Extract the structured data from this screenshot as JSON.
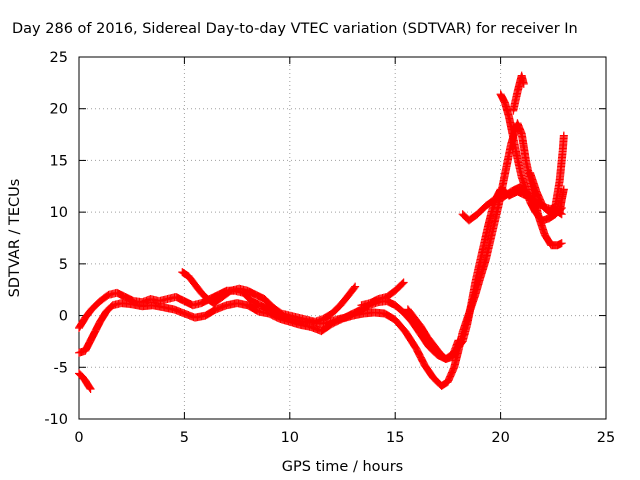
{
  "chart_data": {
    "type": "scatter",
    "title": "Day 286 of 2016, Sidereal Day-to-day VTEC variation (SDTVAR) for receiver In",
    "xlabel": "GPS time / hours",
    "ylabel": "SDTVAR / TECUs",
    "xlim": [
      0,
      25
    ],
    "ylim": [
      -10,
      25
    ],
    "xticks": [
      0,
      5,
      10,
      15,
      20,
      25
    ],
    "yticks": [
      -10,
      -5,
      0,
      5,
      10,
      15,
      20,
      25
    ],
    "grid": true,
    "marker": "plus",
    "color": "#ff0000",
    "series": [
      {
        "points": [
          [
            0.0,
            -1.2
          ],
          [
            0.3,
            -0.2
          ],
          [
            0.6,
            0.6
          ],
          [
            1.0,
            1.4
          ],
          [
            1.4,
            2.0
          ],
          [
            1.8,
            2.2
          ],
          [
            2.2,
            1.8
          ],
          [
            2.6,
            1.4
          ],
          [
            3.0,
            1.3
          ],
          [
            3.4,
            1.6
          ],
          [
            3.8,
            1.4
          ],
          [
            4.2,
            1.6
          ],
          [
            4.6,
            1.8
          ],
          [
            5.0,
            1.4
          ],
          [
            5.4,
            1.0
          ],
          [
            5.8,
            1.2
          ],
          [
            6.2,
            1.6
          ],
          [
            6.6,
            2.0
          ],
          [
            7.0,
            2.4
          ],
          [
            7.4,
            2.4
          ],
          [
            7.8,
            2.2
          ],
          [
            8.2,
            1.4
          ],
          [
            8.6,
            1.0
          ],
          [
            9.0,
            0.6
          ],
          [
            9.4,
            0.2
          ],
          [
            9.8,
            -0.2
          ],
          [
            10.2,
            -0.4
          ],
          [
            10.6,
            -0.6
          ],
          [
            11.0,
            -0.6
          ],
          [
            11.4,
            -0.8
          ],
          [
            11.8,
            -0.7
          ],
          [
            12.2,
            -0.4
          ],
          [
            12.6,
            -0.2
          ],
          [
            13.0,
            0.2
          ],
          [
            13.4,
            0.6
          ],
          [
            13.8,
            1.0
          ],
          [
            14.2,
            1.3
          ],
          [
            14.6,
            1.4
          ],
          [
            15.0,
            1.0
          ],
          [
            15.4,
            0.3
          ],
          [
            15.8,
            -0.6
          ],
          [
            16.2,
            -1.8
          ],
          [
            16.6,
            -3.0
          ],
          [
            17.0,
            -3.8
          ],
          [
            17.4,
            -4.2
          ],
          [
            17.8,
            -3.6
          ],
          [
            18.0,
            -3.0
          ],
          [
            18.2,
            -2.5
          ],
          [
            18.4,
            -1.0
          ],
          [
            18.6,
            1.0
          ],
          [
            18.8,
            3.2
          ],
          [
            19.0,
            5.0
          ],
          [
            19.2,
            6.8
          ],
          [
            19.4,
            8.6
          ],
          [
            19.6,
            10.2
          ],
          [
            19.8,
            11.4
          ],
          [
            20.0,
            12.2
          ],
          [
            20.2,
            12.0
          ],
          [
            20.4,
            11.6
          ],
          [
            20.6,
            11.8
          ],
          [
            20.8,
            12.0
          ],
          [
            21.0,
            11.8
          ],
          [
            21.4,
            11.4
          ],
          [
            21.8,
            10.8
          ],
          [
            22.2,
            10.4
          ],
          [
            22.6,
            10.2
          ],
          [
            22.9,
            9.8
          ]
        ]
      },
      {
        "points": [
          [
            0.0,
            -3.6
          ],
          [
            0.3,
            -3.4
          ],
          [
            0.5,
            -2.6
          ],
          [
            0.8,
            -1.4
          ],
          [
            1.0,
            -0.6
          ],
          [
            1.3,
            0.4
          ],
          [
            1.6,
            1.0
          ],
          [
            2.0,
            1.2
          ],
          [
            2.5,
            1.1
          ],
          [
            3.0,
            0.9
          ],
          [
            3.5,
            1.0
          ],
          [
            4.0,
            0.8
          ],
          [
            4.5,
            0.6
          ],
          [
            5.0,
            0.2
          ],
          [
            5.5,
            -0.2
          ],
          [
            6.0,
            0.0
          ],
          [
            6.5,
            0.6
          ],
          [
            7.0,
            1.0
          ],
          [
            7.5,
            1.2
          ],
          [
            8.0,
            1.0
          ],
          [
            8.5,
            0.4
          ],
          [
            9.0,
            0.2
          ],
          [
            9.5,
            -0.3
          ],
          [
            10.0,
            -0.6
          ],
          [
            10.5,
            -0.9
          ],
          [
            11.0,
            -1.1
          ],
          [
            11.5,
            -1.5
          ],
          [
            12.0,
            -0.8
          ],
          [
            12.5,
            -0.3
          ],
          [
            13.0,
            0.0
          ],
          [
            13.5,
            0.2
          ],
          [
            14.0,
            0.3
          ],
          [
            14.5,
            0.2
          ],
          [
            15.0,
            -0.4
          ],
          [
            15.5,
            -1.6
          ],
          [
            16.0,
            -3.2
          ],
          [
            16.4,
            -4.8
          ],
          [
            16.8,
            -6.0
          ],
          [
            17.2,
            -6.8
          ],
          [
            17.5,
            -6.4
          ],
          [
            17.8,
            -5.0
          ],
          [
            18.0,
            -3.4
          ],
          [
            18.2,
            -1.6
          ],
          [
            18.5,
            0.2
          ],
          [
            18.8,
            2.0
          ],
          [
            19.0,
            3.4
          ],
          [
            19.3,
            5.4
          ],
          [
            19.6,
            8.0
          ],
          [
            19.9,
            10.6
          ],
          [
            20.2,
            13.6
          ],
          [
            20.5,
            16.6
          ],
          [
            20.8,
            18.6
          ],
          [
            21.0,
            17.6
          ],
          [
            21.2,
            15.0
          ],
          [
            21.5,
            12.2
          ],
          [
            21.8,
            9.6
          ],
          [
            22.1,
            7.8
          ],
          [
            22.4,
            6.8
          ],
          [
            22.7,
            6.8
          ],
          [
            22.9,
            7.0
          ]
        ]
      },
      {
        "points": [
          [
            4.9,
            4.2
          ],
          [
            5.2,
            3.8
          ],
          [
            5.5,
            3.0
          ],
          [
            5.8,
            2.2
          ],
          [
            6.1,
            1.6
          ],
          [
            6.4,
            1.2
          ],
          [
            6.8,
            1.8
          ],
          [
            7.2,
            2.4
          ],
          [
            7.6,
            2.6
          ],
          [
            8.0,
            2.4
          ],
          [
            8.4,
            2.0
          ],
          [
            8.8,
            1.6
          ],
          [
            9.2,
            0.8
          ],
          [
            9.6,
            0.2
          ],
          [
            10.0,
            0.0
          ],
          [
            10.4,
            -0.2
          ],
          [
            10.8,
            -0.4
          ],
          [
            11.2,
            -0.6
          ],
          [
            11.6,
            -0.3
          ],
          [
            12.0,
            0.2
          ],
          [
            12.4,
            1.0
          ],
          [
            12.8,
            2.0
          ],
          [
            13.1,
            2.8
          ]
        ]
      },
      {
        "points": [
          [
            13.4,
            1.0
          ],
          [
            13.8,
            1.2
          ],
          [
            14.2,
            1.6
          ],
          [
            14.6,
            1.8
          ],
          [
            15.0,
            2.4
          ],
          [
            15.4,
            3.2
          ]
        ]
      },
      {
        "points": [
          [
            15.6,
            0.6
          ],
          [
            15.9,
            -0.2
          ],
          [
            16.2,
            -1.0
          ],
          [
            16.5,
            -2.0
          ],
          [
            16.8,
            -2.8
          ],
          [
            17.1,
            -3.6
          ],
          [
            17.4,
            -4.2
          ],
          [
            17.7,
            -4.0
          ],
          [
            18.0,
            -2.4
          ]
        ]
      },
      {
        "points": [
          [
            0.0,
            -5.6
          ],
          [
            0.15,
            -5.9
          ],
          [
            0.3,
            -6.3
          ],
          [
            0.45,
            -6.8
          ],
          [
            0.55,
            -7.1
          ]
        ]
      },
      {
        "points": [
          [
            18.2,
            9.8
          ],
          [
            18.5,
            9.2
          ],
          [
            18.9,
            9.8
          ],
          [
            19.3,
            10.6
          ],
          [
            19.7,
            11.2
          ],
          [
            20.1,
            11.4
          ],
          [
            20.5,
            12.0
          ],
          [
            20.9,
            12.4
          ],
          [
            21.2,
            12.0
          ],
          [
            21.5,
            11.2
          ],
          [
            21.8,
            10.6
          ]
        ]
      },
      {
        "points": [
          [
            20.0,
            21.4
          ],
          [
            20.2,
            20.6
          ],
          [
            20.4,
            19.2
          ],
          [
            20.6,
            17.2
          ],
          [
            20.8,
            15.2
          ],
          [
            21.0,
            13.4
          ],
          [
            21.2,
            12.2
          ],
          [
            21.4,
            11.0
          ],
          [
            21.6,
            10.2
          ],
          [
            21.8,
            9.6
          ],
          [
            22.0,
            9.2
          ],
          [
            22.3,
            9.4
          ],
          [
            22.6,
            9.8
          ],
          [
            22.9,
            10.4
          ]
        ]
      },
      {
        "points": [
          [
            20.6,
            19.8
          ],
          [
            20.8,
            21.6
          ],
          [
            21.0,
            23.2
          ],
          [
            21.1,
            22.4
          ]
        ]
      },
      {
        "points": [
          [
            21.4,
            13.8
          ],
          [
            21.7,
            12.0
          ],
          [
            22.0,
            10.6
          ],
          [
            22.3,
            10.0
          ],
          [
            22.6,
            10.6
          ],
          [
            22.8,
            13.0
          ],
          [
            22.95,
            16.0
          ],
          [
            23.0,
            17.4
          ]
        ]
      },
      {
        "points": [
          [
            22.8,
            10.0
          ],
          [
            22.9,
            11.2
          ],
          [
            23.0,
            12.2
          ]
        ]
      }
    ]
  }
}
